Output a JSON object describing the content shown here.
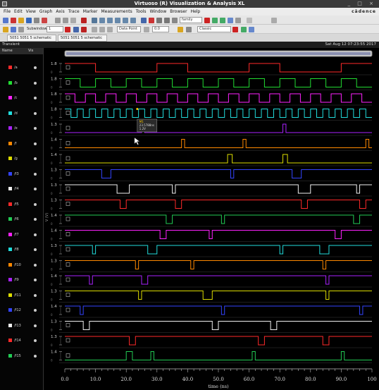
{
  "window": {
    "title": "Virtuoso (R) Visualization & Analysis XL",
    "controls": "_ □ ×"
  },
  "menubar": {
    "items": [
      "File",
      "Edit",
      "View",
      "Graph",
      "Axis",
      "Trace",
      "Marker",
      "Measurements",
      "Tools",
      "Window",
      "Browser",
      "Help"
    ],
    "brand": "cādence"
  },
  "toolbar": {
    "subwindow_label": "Subwindow:",
    "subwindow_value": "1",
    "style_value": "Classic",
    "family_value": "family",
    "field1": "Data Point",
    "field2": "0.0"
  },
  "tabs": [
    "5051 5051 5 schematic",
    "5051 5051 5 schematic"
  ],
  "plot_header": {
    "title": "Transient",
    "timestamp": "Sat Aug 12 07:23:55 2017"
  },
  "signal_list": {
    "col_name": "Name",
    "col_vis": "Vis",
    "signals": [
      {
        "name": "/a",
        "color": "#ff2a2a"
      },
      {
        "name": "/b",
        "color": "#22dd33"
      },
      {
        "name": "/c",
        "color": "#ff22ff"
      },
      {
        "name": "/d",
        "color": "#22dddd"
      },
      {
        "name": "/e",
        "color": "#aa22ff"
      },
      {
        "name": "/f",
        "color": "#ff8800"
      },
      {
        "name": "/g",
        "color": "#dddd00"
      },
      {
        "name": "/f3",
        "color": "#3344ff"
      },
      {
        "name": "/f4",
        "color": "#f0f0f0"
      },
      {
        "name": "/f5",
        "color": "#ff2a2a"
      },
      {
        "name": "/f6",
        "color": "#22cc55"
      },
      {
        "name": "/f7",
        "color": "#ff22ff"
      },
      {
        "name": "/f8",
        "color": "#22dddd"
      },
      {
        "name": "/f10",
        "color": "#ff8800"
      },
      {
        "name": "/f9",
        "color": "#aa22ff"
      },
      {
        "name": "/f11",
        "color": "#dddd00"
      },
      {
        "name": "/f12",
        "color": "#3344ff"
      },
      {
        "name": "/f13",
        "color": "#f0f0f0"
      },
      {
        "name": "/f14",
        "color": "#ff2a2a"
      },
      {
        "name": "/f15",
        "color": "#22cc55"
      }
    ]
  },
  "marker": {
    "label": "M1",
    "x": "23.5788ns",
    "y": "1.2V"
  },
  "chart_data": {
    "type": "line",
    "xlabel": "time (ns)",
    "xlim": [
      0,
      100
    ],
    "x_ticks": [
      "0.0",
      "10.0",
      "20.0",
      "30.0",
      "40.0",
      "50.0",
      "60.0",
      "70.0",
      "80.0",
      "90.0",
      "100"
    ],
    "y_axis_label": "V (V)",
    "series": [
      {
        "color": "#ff2a2a",
        "ymax": "1.8",
        "ymin": "0",
        "base": "low",
        "edges": [
          0,
          10,
          30,
          40,
          60,
          70,
          90
        ]
      },
      {
        "color": "#22dd33",
        "ymax": "1.8",
        "ymin": "0",
        "base": "low",
        "edges": [
          0,
          5,
          10,
          15,
          20,
          25,
          30,
          35,
          40,
          45,
          50,
          55,
          60,
          65,
          70,
          75,
          80,
          85,
          90,
          95
        ]
      },
      {
        "color": "#ff22ff",
        "ymax": "1.8",
        "ymin": "0",
        "base": "low",
        "edges": [
          0,
          3.3,
          6.7,
          10,
          13.3,
          16.7,
          20,
          23.3,
          26.7,
          30,
          33.3,
          36.7,
          40,
          43.3,
          46.7,
          50,
          53.3,
          56.7,
          60,
          63.3,
          66.7,
          70,
          73.3,
          76.7,
          80,
          83.3,
          86.7,
          90,
          93.3,
          96.7
        ]
      },
      {
        "color": "#22dddd",
        "ymax": "1.8",
        "ymin": "0",
        "base": "low",
        "edges": [
          0,
          2,
          4,
          6,
          8,
          10,
          12,
          14,
          16,
          18,
          20,
          22,
          24,
          26,
          28,
          30,
          32,
          34,
          36,
          38,
          40,
          42,
          44,
          46,
          48,
          50,
          52,
          54,
          56,
          58,
          60,
          62,
          64,
          66,
          68,
          70,
          72,
          74,
          76,
          78,
          80,
          82,
          84,
          86,
          88,
          90,
          92,
          94,
          96,
          98
        ]
      },
      {
        "color": "#aa22ff",
        "ymax": "1.3",
        "ymin": "0",
        "base": "low",
        "edges": [
          25,
          26,
          71,
          72
        ]
      },
      {
        "color": "#ff8800",
        "ymax": "1.4",
        "ymin": "0",
        "base": "low",
        "edges": [
          38,
          39,
          58,
          59,
          98,
          99
        ]
      },
      {
        "color": "#dddd00",
        "ymax": "1.4",
        "ymin": "0",
        "base": "low",
        "edges": [
          53,
          54.5,
          71,
          72.5
        ]
      },
      {
        "color": "#3344ff",
        "ymax": "1.3",
        "ymin": "0",
        "base": "high",
        "edges": [
          12,
          15,
          54,
          55,
          74,
          77
        ]
      },
      {
        "color": "#f0f0f0",
        "ymax": "1.3",
        "ymin": "0",
        "base": "high",
        "edges": [
          17,
          21,
          35,
          36,
          76,
          80,
          95,
          96
        ]
      },
      {
        "color": "#ff2a2a",
        "ymax": "1.3",
        "ymin": "0",
        "base": "high",
        "edges": [
          18,
          20,
          36,
          38,
          77,
          79,
          96,
          98
        ]
      },
      {
        "color": "#22cc55",
        "ymax": "1.4",
        "ymin": "0",
        "base": "high",
        "edges": [
          33,
          35,
          51,
          52,
          94,
          96
        ]
      },
      {
        "color": "#ff22ff",
        "ymax": "1.4",
        "ymin": "0",
        "base": "high",
        "edges": [
          31,
          33,
          47,
          48,
          88,
          90
        ]
      },
      {
        "color": "#22dddd",
        "ymax": "1.3",
        "ymin": "0",
        "base": "high",
        "edges": [
          9,
          10,
          27,
          30,
          70,
          71,
          83,
          86
        ]
      },
      {
        "color": "#ff8800",
        "ymax": "1.3",
        "ymin": "0",
        "base": "high",
        "edges": [
          23,
          24,
          41,
          42,
          84,
          85
        ]
      },
      {
        "color": "#aa22ff",
        "ymax": "1.4",
        "ymin": "0",
        "base": "high",
        "edges": [
          8,
          9,
          25,
          27,
          85,
          86
        ]
      },
      {
        "color": "#dddd00",
        "ymax": "1.3",
        "ymin": "0",
        "base": "high",
        "edges": [
          24,
          25,
          45,
          48,
          85,
          86
        ]
      },
      {
        "color": "#3344ff",
        "ymax": "1.4",
        "ymin": "0",
        "base": "high",
        "edges": [
          5,
          6,
          51,
          52,
          96,
          97
        ]
      },
      {
        "color": "#f0f0f0",
        "ymax": "1.3",
        "ymin": "0",
        "base": "high",
        "edges": [
          6,
          8,
          48,
          50,
          67,
          69
        ]
      },
      {
        "color": "#ff2a2a",
        "ymax": "1.3",
        "ymin": "0",
        "base": "high",
        "edges": [
          21,
          23,
          63,
          65,
          84,
          86
        ]
      },
      {
        "color": "#22cc55",
        "ymax": "1.4",
        "ymin": "0",
        "base": "low",
        "edges": [
          20,
          22,
          28,
          29,
          61,
          62,
          90,
          91
        ]
      }
    ]
  }
}
